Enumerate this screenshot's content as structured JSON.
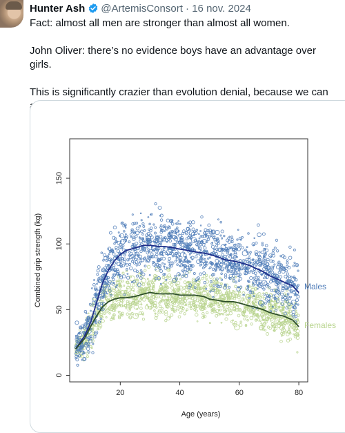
{
  "tweet": {
    "author_name": "Hunter Ash",
    "handle": "@ArtemisConsort",
    "separator": "·",
    "date": "16 nov. 2024",
    "verified_color": "#1d9bf0",
    "paragraphs": [
      "Fact: almost all men are stronger than almost all women.",
      "John Oliver: there’s no evidence boys have an advantage over girls.",
      "This is significantly crazier than evolution denial, because we can all see the facts today, with our eyes."
    ]
  },
  "chart_data": {
    "type": "scatter",
    "title": "",
    "xlabel": "Age (years)",
    "ylabel": "Combined grip strength (kg)",
    "xlim": [
      3,
      83
    ],
    "ylim": [
      -5,
      180
    ],
    "x_ticks": [
      20,
      40,
      60,
      80
    ],
    "y_ticks": [
      0,
      50,
      100,
      150
    ],
    "grid": false,
    "legend": "direct labels at right end of lines",
    "series": [
      {
        "name": "Males",
        "color": "#1f2e8a",
        "point_color": "#4f7cb8",
        "trend_x": [
          5,
          8,
          10,
          12,
          14,
          16,
          18,
          20,
          22,
          25,
          28,
          30,
          33,
          35,
          38,
          40,
          43,
          45,
          48,
          50,
          53,
          55,
          58,
          60,
          63,
          65,
          68,
          70,
          73,
          75,
          78,
          80
        ],
        "trend_y": [
          20,
          30,
          40,
          55,
          70,
          80,
          87,
          92,
          95,
          97,
          99,
          99,
          98,
          98,
          97,
          96,
          95,
          94,
          93,
          92,
          90,
          88,
          87,
          86,
          84,
          82,
          79,
          76,
          73,
          71,
          68,
          63
        ]
      },
      {
        "name": "Females",
        "color": "#2e4f2a",
        "point_color": "#b8d48e",
        "trend_x": [
          5,
          8,
          10,
          12,
          14,
          16,
          18,
          20,
          22,
          25,
          28,
          30,
          33,
          35,
          38,
          40,
          43,
          45,
          48,
          50,
          53,
          55,
          58,
          60,
          63,
          65,
          68,
          70,
          73,
          75,
          78,
          80
        ],
        "trend_y": [
          20,
          28,
          37,
          45,
          52,
          56,
          58,
          59,
          59,
          60,
          62,
          63,
          62,
          62,
          62,
          61,
          61,
          61,
          60,
          58,
          57,
          56,
          56,
          55,
          53,
          52,
          50,
          48,
          46,
          45,
          42,
          37
        ]
      }
    ]
  }
}
